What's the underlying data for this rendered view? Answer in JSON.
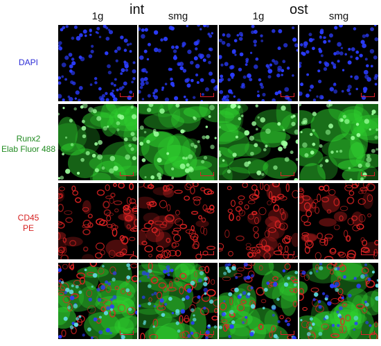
{
  "groups": [
    {
      "title": "int"
    },
    {
      "title": "ost"
    }
  ],
  "columns": [
    {
      "label": "1g"
    },
    {
      "label": "smg"
    },
    {
      "label": "1g"
    },
    {
      "label": "smg"
    }
  ],
  "rows": [
    {
      "lines": [
        "DAPI"
      ],
      "color": "#2b2bd6",
      "stain": "dapi"
    },
    {
      "lines": [
        "Runx2",
        "Elab Fluor 488"
      ],
      "color": "#1f8a1f",
      "stain": "green"
    },
    {
      "lines": [
        "CD45",
        "PE"
      ],
      "color": "#d62020",
      "stain": "red"
    },
    {
      "lines": [],
      "color": "#000000",
      "stain": "merge"
    }
  ],
  "colors": {
    "dapi": "#2b3cff",
    "runx2": "#2fd12f",
    "cd45": "#e02424",
    "scale_bar": "#e0202a",
    "panel_background": "#000000"
  }
}
